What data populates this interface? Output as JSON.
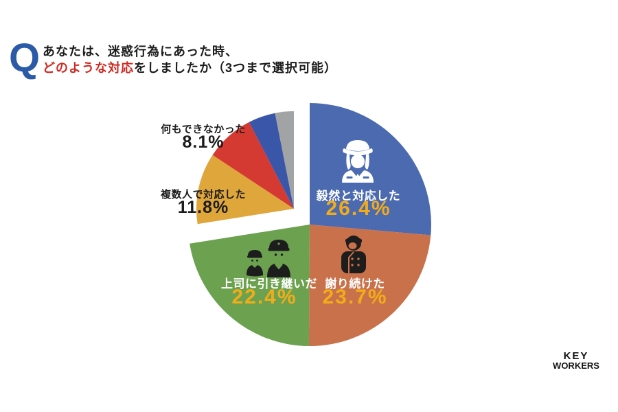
{
  "header": {
    "q_mark": "Q",
    "line1": "あなたは、迷惑行為にあった時、",
    "line2_highlight": "どのような対応",
    "line2_rest": "をしましたか（3つまで選択可能）"
  },
  "colors": {
    "q_blue": "#2b5aa7",
    "title_red": "#cd2a22",
    "pct_yellow": "#f2ac19",
    "text_black": "#1b1b1b",
    "background": "#ffffff"
  },
  "chart_data": {
    "type": "pie",
    "title": "",
    "start_angle_deg": 0,
    "direction": "clockwise",
    "legend": "none",
    "segments": [
      {
        "id": "kizen",
        "label": "毅然と対応した",
        "value": 26.4,
        "pct_text": "26.4%",
        "color": "#4b6ab0",
        "label_placement": "inside",
        "label_color": "#ffffff",
        "pct_color": "#f2ac19",
        "icon": "station-attendant-icon",
        "exploded": false
      },
      {
        "id": "ayamari",
        "label": "謝り続けた",
        "value": 23.7,
        "pct_text": "23.7%",
        "color": "#c8714a",
        "label_placement": "inside",
        "label_color": "#ffffff",
        "pct_color": "#f2ac19",
        "icon": "apologizing-staff-icon",
        "exploded": false
      },
      {
        "id": "joshi",
        "label": "上司に引き継いだ",
        "value": 22.4,
        "pct_text": "22.4%",
        "color": "#6ca24f",
        "label_placement": "inside",
        "label_color": "#ffffff",
        "pct_color": "#f2ac19",
        "icon": "supervisor-handover-icon",
        "exploded": false
      },
      {
        "id": "fukusuu",
        "label": "複数人で対応した",
        "value": 11.8,
        "pct_text": "11.8%",
        "color": "#dfa63b",
        "label_placement": "outside",
        "label_color": "#1b1b1b",
        "pct_color": "#1b1b1b",
        "exploded": true
      },
      {
        "id": "nanimo",
        "label": "何もできなかった",
        "value": 8.1,
        "pct_text": "8.1%",
        "color": "#d43a32",
        "label_placement": "outside",
        "label_color": "#1b1b1b",
        "pct_color": "#1b1b1b",
        "exploded": true
      },
      {
        "id": "other1",
        "label": "",
        "value": 4.5,
        "pct_text": "",
        "color": "#3a56a8",
        "label_placement": "none",
        "exploded": true,
        "estimated": true
      },
      {
        "id": "other2",
        "label": "",
        "value": 3.1,
        "pct_text": "",
        "color": "#a2a3a5",
        "label_placement": "none",
        "exploded": true,
        "estimated": true
      }
    ]
  },
  "logo": {
    "line1": "KEY",
    "line2": "WORKERS"
  }
}
